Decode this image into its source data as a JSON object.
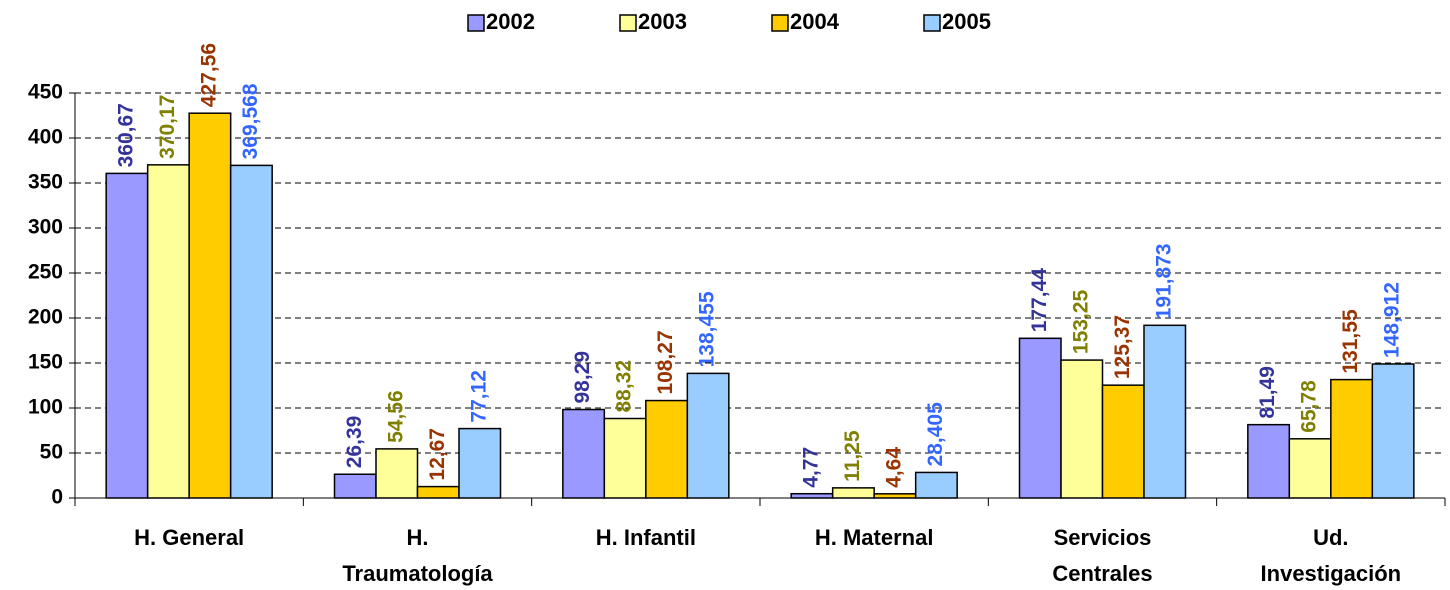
{
  "chart_data": {
    "type": "bar",
    "categories": [
      "H. General",
      "H. Traumatología",
      "H. Infantil",
      "H. Maternal",
      "Servicios Centrales",
      "Ud. Investigación"
    ],
    "series": [
      {
        "name": "2002",
        "color": "#9999ff",
        "label_color": "#333399",
        "values": [
          360.67,
          26.39,
          98.29,
          4.77,
          177.44,
          81.49
        ],
        "value_labels": [
          "360,67",
          "26,39",
          "98,29",
          "4,77",
          "177,44",
          "81,49"
        ]
      },
      {
        "name": "2003",
        "color": "#ffff99",
        "label_color": "#808000",
        "values": [
          370.17,
          54.56,
          88.32,
          11.25,
          153.25,
          65.78
        ],
        "value_labels": [
          "370,17",
          "54,56",
          "88,32",
          "11,25",
          "153,25",
          "65,78"
        ]
      },
      {
        "name": "2004",
        "color": "#ffcc00",
        "label_color": "#993300",
        "values": [
          427.56,
          12.67,
          108.27,
          4.64,
          125.37,
          131.55
        ],
        "value_labels": [
          "427,56",
          "12,67",
          "108,27",
          "4,64",
          "125,37",
          "131,55"
        ]
      },
      {
        "name": "2005",
        "color": "#99ccff",
        "label_color": "#3366ff",
        "values": [
          369.568,
          77.12,
          138.455,
          28.405,
          191.873,
          148.912
        ],
        "value_labels": [
          "369,568",
          "77,12",
          "138,455",
          "28,405",
          "191,873",
          "148,912"
        ]
      }
    ],
    "ylim": [
      0,
      450
    ],
    "yticks": [
      0,
      50,
      100,
      150,
      200,
      250,
      300,
      350,
      400,
      450
    ],
    "grid": true,
    "legend": "top"
  }
}
